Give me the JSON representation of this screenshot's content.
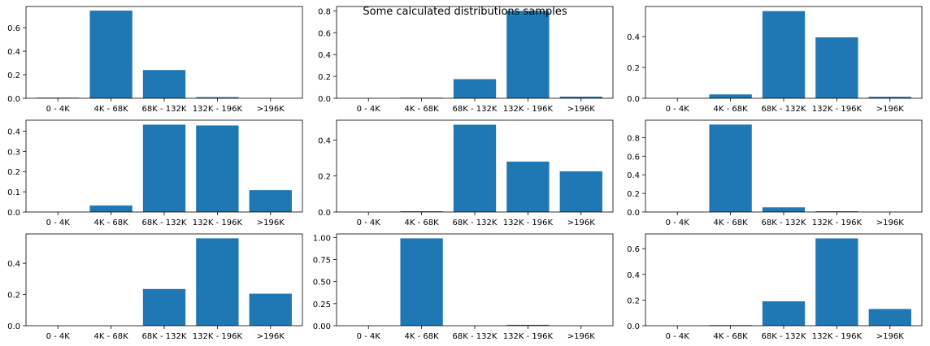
{
  "figure": {
    "suptitle": "Some calculated distributions samples"
  },
  "colors": {
    "bar": "#1f77b4",
    "axis": "#000000",
    "text": "#000000"
  },
  "chart_data": [
    {
      "type": "bar",
      "categories": [
        "0 - 4K",
        "4K - 68K",
        "68K - 132K",
        "132K - 196K",
        ">196K"
      ],
      "values": [
        0.005,
        0.745,
        0.24,
        0.01,
        0.0
      ],
      "ylim": [
        0,
        0.78
      ],
      "yticks": [
        0.0,
        0.2,
        0.4,
        0.6
      ],
      "ytick_labels": [
        "0.0",
        "0.2",
        "0.4",
        "0.6"
      ],
      "xlabel": "",
      "ylabel": "",
      "title": ""
    },
    {
      "type": "bar",
      "categories": [
        "0 - 4K",
        "4K - 68K",
        "68K - 132K",
        "132K - 196K",
        ">196K"
      ],
      "values": [
        0.0,
        0.005,
        0.175,
        0.8,
        0.015
      ],
      "ylim": [
        0,
        0.84
      ],
      "yticks": [
        0.0,
        0.2,
        0.4,
        0.6,
        0.8
      ],
      "ytick_labels": [
        "0.0",
        "0.2",
        "0.4",
        "0.6",
        "0.8"
      ],
      "xlabel": "",
      "ylabel": "",
      "title": ""
    },
    {
      "type": "bar",
      "categories": [
        "0 - 4K",
        "4K - 68K",
        "68K - 132K",
        "132K - 196K",
        ">196K"
      ],
      "values": [
        0.0,
        0.025,
        0.565,
        0.395,
        0.01
      ],
      "ylim": [
        0,
        0.595
      ],
      "yticks": [
        0.0,
        0.2,
        0.4
      ],
      "ytick_labels": [
        "0.0",
        "0.2",
        "0.4"
      ],
      "xlabel": "",
      "ylabel": "",
      "title": ""
    },
    {
      "type": "bar",
      "categories": [
        "0 - 4K",
        "4K - 68K",
        "68K - 132K",
        "132K - 196K",
        ">196K"
      ],
      "values": [
        0.0,
        0.032,
        0.432,
        0.428,
        0.108
      ],
      "ylim": [
        0,
        0.454
      ],
      "yticks": [
        0.0,
        0.1,
        0.2,
        0.3,
        0.4
      ],
      "ytick_labels": [
        "0.0",
        "0.1",
        "0.2",
        "0.3",
        "0.4"
      ],
      "xlabel": "",
      "ylabel": "",
      "title": ""
    },
    {
      "type": "bar",
      "categories": [
        "0 - 4K",
        "4K - 68K",
        "68K - 132K",
        "132K - 196K",
        ">196K"
      ],
      "values": [
        0.0,
        0.004,
        0.485,
        0.28,
        0.226
      ],
      "ylim": [
        0,
        0.51
      ],
      "yticks": [
        0.0,
        0.2,
        0.4
      ],
      "ytick_labels": [
        "0.0",
        "0.2",
        "0.4"
      ],
      "xlabel": "",
      "ylabel": "",
      "title": ""
    },
    {
      "type": "bar",
      "categories": [
        "0 - 4K",
        "4K - 68K",
        "68K - 132K",
        "132K - 196K",
        ">196K"
      ],
      "values": [
        0.0,
        0.94,
        0.05,
        0.008,
        0.0
      ],
      "ylim": [
        0,
        0.987
      ],
      "yticks": [
        0.0,
        0.2,
        0.4,
        0.6,
        0.8
      ],
      "ytick_labels": [
        "0.0",
        "0.2",
        "0.4",
        "0.6",
        "0.8"
      ],
      "xlabel": "",
      "ylabel": "",
      "title": ""
    },
    {
      "type": "bar",
      "categories": [
        "0 - 4K",
        "4K - 68K",
        "68K - 132K",
        "132K - 196K",
        ">196K"
      ],
      "values": [
        0.0,
        0.0,
        0.235,
        0.56,
        0.205
      ],
      "ylim": [
        0,
        0.588
      ],
      "yticks": [
        0.0,
        0.2,
        0.4
      ],
      "ytick_labels": [
        "0.0",
        "0.2",
        "0.4"
      ],
      "xlabel": "",
      "ylabel": "",
      "title": ""
    },
    {
      "type": "bar",
      "categories": [
        "0 - 4K",
        "4K - 68K",
        "68K - 132K",
        "132K - 196K",
        ">196K"
      ],
      "values": [
        0.0,
        0.99,
        0.0,
        0.01,
        0.0
      ],
      "ylim": [
        0,
        1.04
      ],
      "yticks": [
        0.0,
        0.25,
        0.5,
        0.75,
        1.0
      ],
      "ytick_labels": [
        "0.00",
        "0.25",
        "0.50",
        "0.75",
        "1.00"
      ],
      "xlabel": "",
      "ylabel": "",
      "title": ""
    },
    {
      "type": "bar",
      "categories": [
        "0 - 4K",
        "4K - 68K",
        "68K - 132K",
        "132K - 196K",
        ">196K"
      ],
      "values": [
        0.0,
        0.005,
        0.19,
        0.68,
        0.13
      ],
      "ylim": [
        0,
        0.715
      ],
      "yticks": [
        0.0,
        0.2,
        0.4,
        0.6
      ],
      "ytick_labels": [
        "0.0",
        "0.2",
        "0.4",
        "0.6"
      ],
      "xlabel": "",
      "ylabel": "",
      "title": ""
    }
  ]
}
